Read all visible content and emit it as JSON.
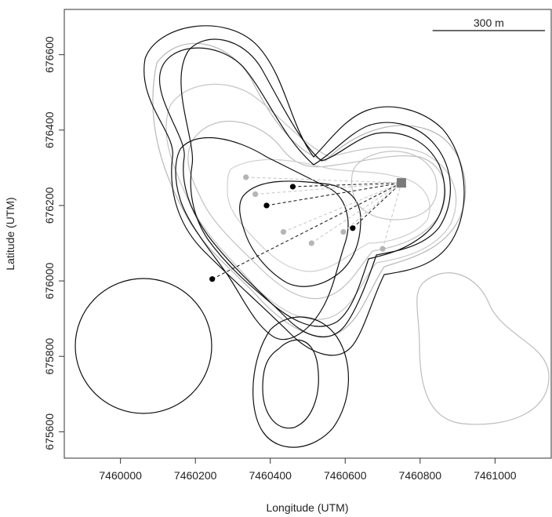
{
  "chart_data": {
    "type": "scatter",
    "xlabel": "Longitude (UTM)",
    "ylabel": "Latitude (UTM)",
    "xlim": [
      7459850,
      7461150
    ],
    "ylim": [
      675530,
      676720
    ],
    "x_ticks": [
      7460000,
      7460200,
      7460400,
      7460600,
      7460800,
      7461000
    ],
    "y_ticks": [
      675600,
      675800,
      676000,
      676200,
      676400,
      676600
    ],
    "x_tick_labels": [
      "7460000",
      "7460200",
      "7460400",
      "7460600",
      "7460800",
      "7461000"
    ],
    "y_tick_labels": [
      "675600",
      "675800",
      "676000",
      "676200",
      "676400",
      "676600"
    ],
    "scale_bar": {
      "label": "300 m",
      "length_m": 300
    },
    "grid": false,
    "legend": "none",
    "focal_point": {
      "x": 7460750,
      "y": 676260,
      "marker": "square",
      "color": "#7a7a7a"
    },
    "series": [
      {
        "color": "#000000",
        "points": [
          {
            "x": 7460460,
            "y": 676250
          },
          {
            "x": 7460390,
            "y": 676200
          },
          {
            "x": 7460245,
            "y": 676005
          },
          {
            "x": 7460620,
            "y": 676140
          }
        ]
      },
      {
        "color": "#b5b5b5",
        "points": [
          {
            "x": 7460335,
            "y": 676275
          },
          {
            "x": 7460360,
            "y": 676230
          },
          {
            "x": 7460435,
            "y": 676130
          },
          {
            "x": 7460510,
            "y": 676100
          },
          {
            "x": 7460595,
            "y": 676130
          },
          {
            "x": 7460700,
            "y": 676085
          }
        ]
      }
    ]
  },
  "colors": {
    "dark": "#000000",
    "light": "#b5b5b5",
    "focal": "#7a7a7a",
    "frame": "#333333"
  }
}
